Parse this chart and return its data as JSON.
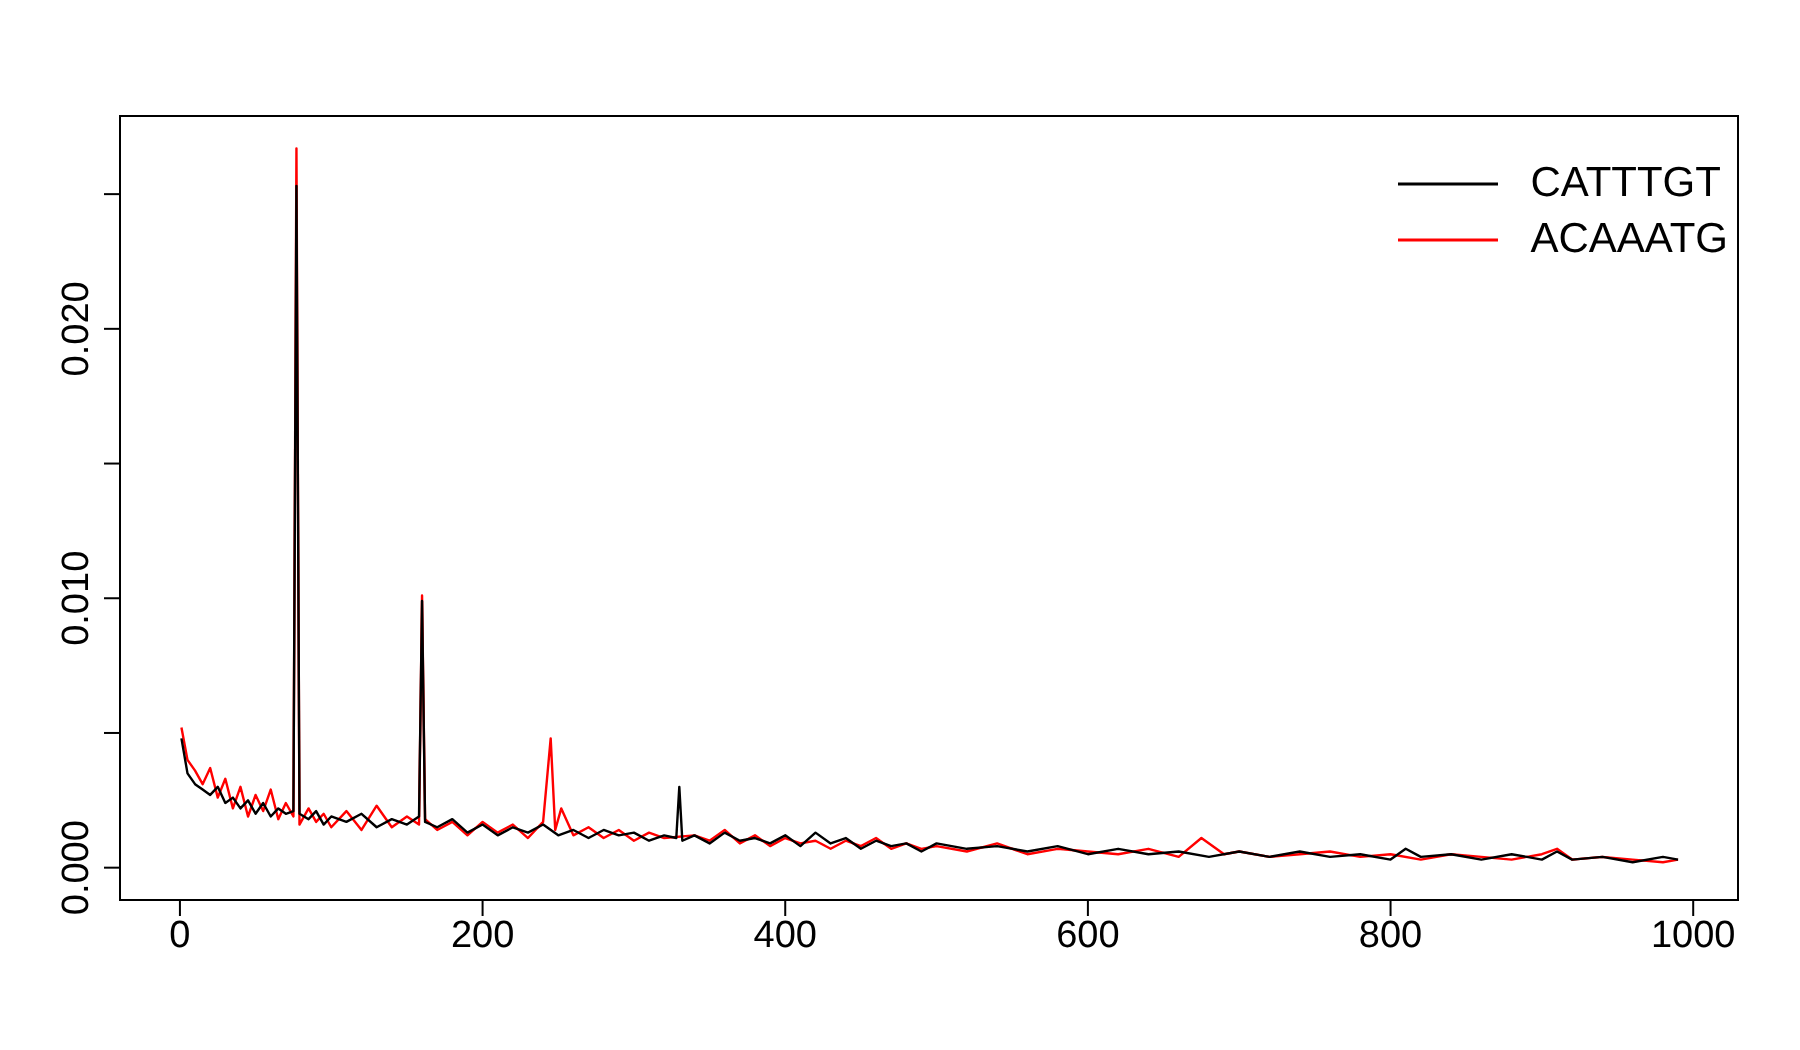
{
  "chart_data": {
    "type": "line",
    "xlim": [
      -39.6,
      1029.6
    ],
    "ylim": [
      -0.0012,
      0.0279
    ],
    "xticks": [
      0,
      200,
      400,
      600,
      800,
      1000
    ],
    "yticks": [
      {
        "value": 0,
        "label": "0.000"
      },
      {
        "value": 0.005,
        "label": null
      },
      {
        "value": 0.01,
        "label": "0.010"
      },
      {
        "value": 0.015,
        "label": null
      },
      {
        "value": 0.02,
        "label": "0.020"
      },
      {
        "value": 0.025,
        "label": null
      }
    ],
    "legend": "top right",
    "marker": "none",
    "line_style": "solid",
    "grid": false,
    "series": [
      {
        "name": "CATTTGT",
        "color": "#000000",
        "x": [
          1,
          5,
          10,
          15,
          20,
          25,
          30,
          35,
          40,
          45,
          50,
          55,
          60,
          65,
          70,
          75,
          77,
          79,
          85,
          90,
          95,
          100,
          110,
          120,
          130,
          140,
          150,
          158,
          160,
          162,
          170,
          180,
          190,
          200,
          210,
          220,
          230,
          240,
          250,
          260,
          270,
          280,
          290,
          300,
          310,
          320,
          328,
          330,
          332,
          340,
          350,
          360,
          370,
          380,
          390,
          400,
          410,
          420,
          430,
          440,
          450,
          460,
          470,
          480,
          490,
          500,
          520,
          540,
          560,
          580,
          600,
          620,
          640,
          660,
          680,
          700,
          720,
          740,
          760,
          780,
          800,
          810,
          820,
          840,
          860,
          880,
          900,
          910,
          920,
          940,
          960,
          980,
          990
        ],
        "values": [
          0.0048,
          0.0035,
          0.0031,
          0.0029,
          0.0027,
          0.003,
          0.0024,
          0.0026,
          0.0022,
          0.0025,
          0.002,
          0.0024,
          0.0019,
          0.0022,
          0.002,
          0.0021,
          0.0253,
          0.002,
          0.0018,
          0.0021,
          0.0016,
          0.0019,
          0.0017,
          0.002,
          0.0015,
          0.0018,
          0.0016,
          0.0019,
          0.0099,
          0.0017,
          0.0015,
          0.0018,
          0.0013,
          0.0016,
          0.0012,
          0.0015,
          0.0013,
          0.0016,
          0.0012,
          0.0014,
          0.0011,
          0.0014,
          0.0012,
          0.0013,
          0.001,
          0.0012,
          0.0011,
          0.003,
          0.001,
          0.0012,
          0.0009,
          0.0013,
          0.001,
          0.0011,
          0.0009,
          0.0012,
          0.0008,
          0.0013,
          0.0009,
          0.0011,
          0.0007,
          0.001,
          0.0008,
          0.0009,
          0.0006,
          0.0009,
          0.0007,
          0.0008,
          0.0006,
          0.0008,
          0.0005,
          0.0007,
          0.0005,
          0.0006,
          0.0004,
          0.0006,
          0.0004,
          0.0006,
          0.0004,
          0.0005,
          0.0003,
          0.0007,
          0.0004,
          0.0005,
          0.0003,
          0.0005,
          0.0003,
          0.0006,
          0.0003,
          0.0004,
          0.0002,
          0.0004,
          0.0003
        ]
      },
      {
        "name": "ACAAATG",
        "color": "#ff0000",
        "x": [
          1,
          5,
          10,
          15,
          20,
          25,
          30,
          35,
          40,
          45,
          50,
          55,
          60,
          65,
          70,
          75,
          77,
          79,
          85,
          90,
          95,
          100,
          110,
          120,
          130,
          140,
          150,
          158,
          160,
          162,
          170,
          180,
          190,
          200,
          210,
          220,
          230,
          240,
          245,
          248,
          252,
          260,
          270,
          280,
          290,
          300,
          310,
          320,
          340,
          350,
          360,
          370,
          380,
          390,
          400,
          410,
          420,
          430,
          440,
          450,
          460,
          470,
          480,
          490,
          500,
          520,
          540,
          560,
          580,
          600,
          620,
          640,
          660,
          675,
          690,
          700,
          720,
          740,
          760,
          780,
          800,
          820,
          840,
          860,
          880,
          900,
          910,
          920,
          940,
          960,
          980,
          990
        ],
        "values": [
          0.0052,
          0.004,
          0.0036,
          0.0031,
          0.0037,
          0.0026,
          0.0033,
          0.0022,
          0.003,
          0.0019,
          0.0027,
          0.0021,
          0.0029,
          0.0018,
          0.0024,
          0.0019,
          0.0267,
          0.0016,
          0.0022,
          0.0017,
          0.002,
          0.0015,
          0.0021,
          0.0014,
          0.0023,
          0.0015,
          0.0019,
          0.0016,
          0.0101,
          0.0018,
          0.0014,
          0.0017,
          0.0012,
          0.0017,
          0.0013,
          0.0016,
          0.0011,
          0.0017,
          0.0048,
          0.0014,
          0.0022,
          0.0012,
          0.0015,
          0.0011,
          0.0014,
          0.001,
          0.0013,
          0.0011,
          0.0012,
          0.001,
          0.0014,
          0.0009,
          0.0012,
          0.0008,
          0.0011,
          0.0009,
          0.001,
          0.0007,
          0.001,
          0.0008,
          0.0011,
          0.0007,
          0.0009,
          0.0007,
          0.0008,
          0.0006,
          0.0009,
          0.0005,
          0.0007,
          0.0006,
          0.0005,
          0.0007,
          0.0004,
          0.0011,
          0.0005,
          0.0006,
          0.0004,
          0.0005,
          0.0006,
          0.0004,
          0.0005,
          0.0003,
          0.0005,
          0.0004,
          0.0003,
          0.0005,
          0.0007,
          0.0003,
          0.0004,
          0.0003,
          0.0002,
          0.0003
        ]
      }
    ]
  }
}
